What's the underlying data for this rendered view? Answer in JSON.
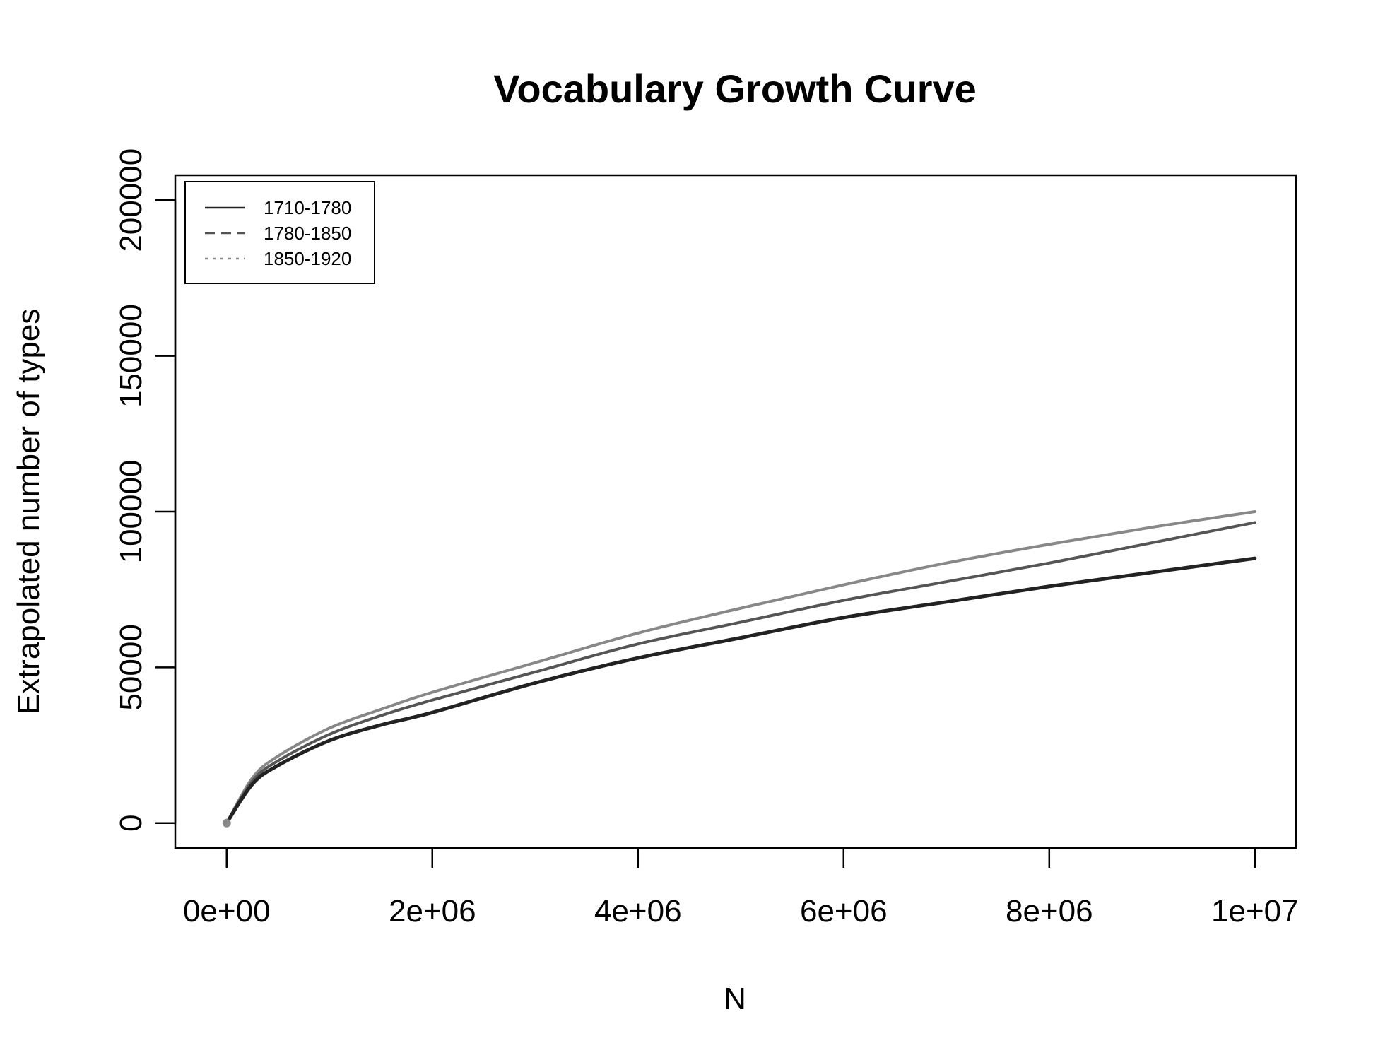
{
  "chart_data": {
    "type": "line",
    "title": "Vocabulary Growth Curve",
    "xlabel": "N",
    "ylabel": "Extrapolated number of types",
    "xlim": [
      -500000,
      10400000
    ],
    "ylim": [
      -8000,
      208000
    ],
    "x_ticks": [
      0,
      2000000,
      4000000,
      6000000,
      8000000,
      10000000
    ],
    "x_tick_labels": [
      "0e+00",
      "2e+06",
      "4e+06",
      "6e+06",
      "8e+06",
      "1e+07"
    ],
    "y_ticks": [
      0,
      50000,
      100000,
      150000,
      200000
    ],
    "y_tick_labels": [
      "0",
      "50000",
      "100000",
      "150000",
      "200000"
    ],
    "grid": false,
    "legend_position": "top-left",
    "series": [
      {
        "name": "1710-1780",
        "color": "#222222",
        "dash": "solid",
        "x": [
          0,
          250000,
          500000,
          1000000,
          1500000,
          2000000,
          3000000,
          4000000,
          5000000,
          6000000,
          7000000,
          8000000,
          9000000,
          10000000
        ],
        "y": [
          0,
          12500,
          18500,
          26500,
          31500,
          35500,
          45000,
          53000,
          59500,
          66000,
          71000,
          76000,
          80500,
          85000
        ]
      },
      {
        "name": "1780-1850",
        "color": "#555555",
        "dash": "dashed",
        "x": [
          0,
          250000,
          500000,
          1000000,
          1500000,
          2000000,
          3000000,
          4000000,
          5000000,
          6000000,
          7000000,
          8000000,
          9000000,
          10000000
        ],
        "y": [
          0,
          13500,
          20000,
          28500,
          34500,
          39500,
          48500,
          57500,
          64500,
          71500,
          77500,
          83500,
          90000,
          96500
        ]
      },
      {
        "name": "1850-1920",
        "color": "#888888",
        "dash": "dotted",
        "x": [
          0,
          250000,
          500000,
          1000000,
          1500000,
          2000000,
          3000000,
          4000000,
          5000000,
          6000000,
          7000000,
          8000000,
          9000000,
          10000000
        ],
        "y": [
          0,
          14500,
          21500,
          30500,
          36500,
          42000,
          51500,
          61000,
          69000,
          76500,
          83500,
          89500,
          95000,
          100000
        ]
      }
    ]
  }
}
